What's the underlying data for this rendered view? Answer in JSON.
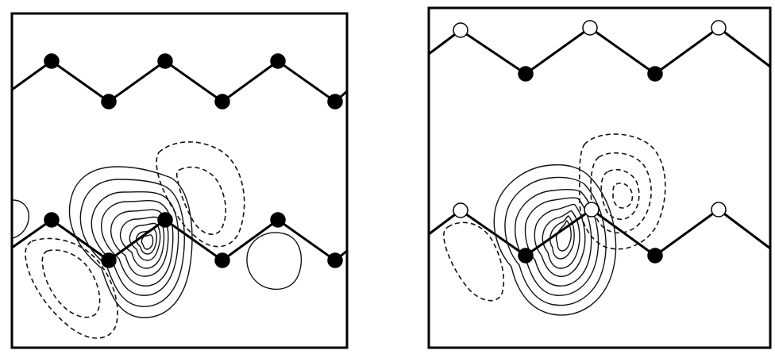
{
  "panels": [
    {
      "id": "left",
      "atom_types": [
        "filled",
        "filled",
        "filled",
        "filled",
        "filled",
        "filled",
        "filled",
        "filled",
        "filled",
        "filled",
        "filled",
        "filled"
      ],
      "colors": {
        "atom": "#000000",
        "bond": "#000000",
        "contour": "#111111"
      }
    },
    {
      "id": "right",
      "atom_types": [
        "open",
        "open",
        "open",
        "filled",
        "filled",
        "open",
        "open",
        "open",
        "filled",
        "filled"
      ],
      "colors": {
        "atom": "#000000",
        "open_atom": "#ffffff",
        "bond": "#000000",
        "contour": "#111111"
      }
    }
  ]
}
